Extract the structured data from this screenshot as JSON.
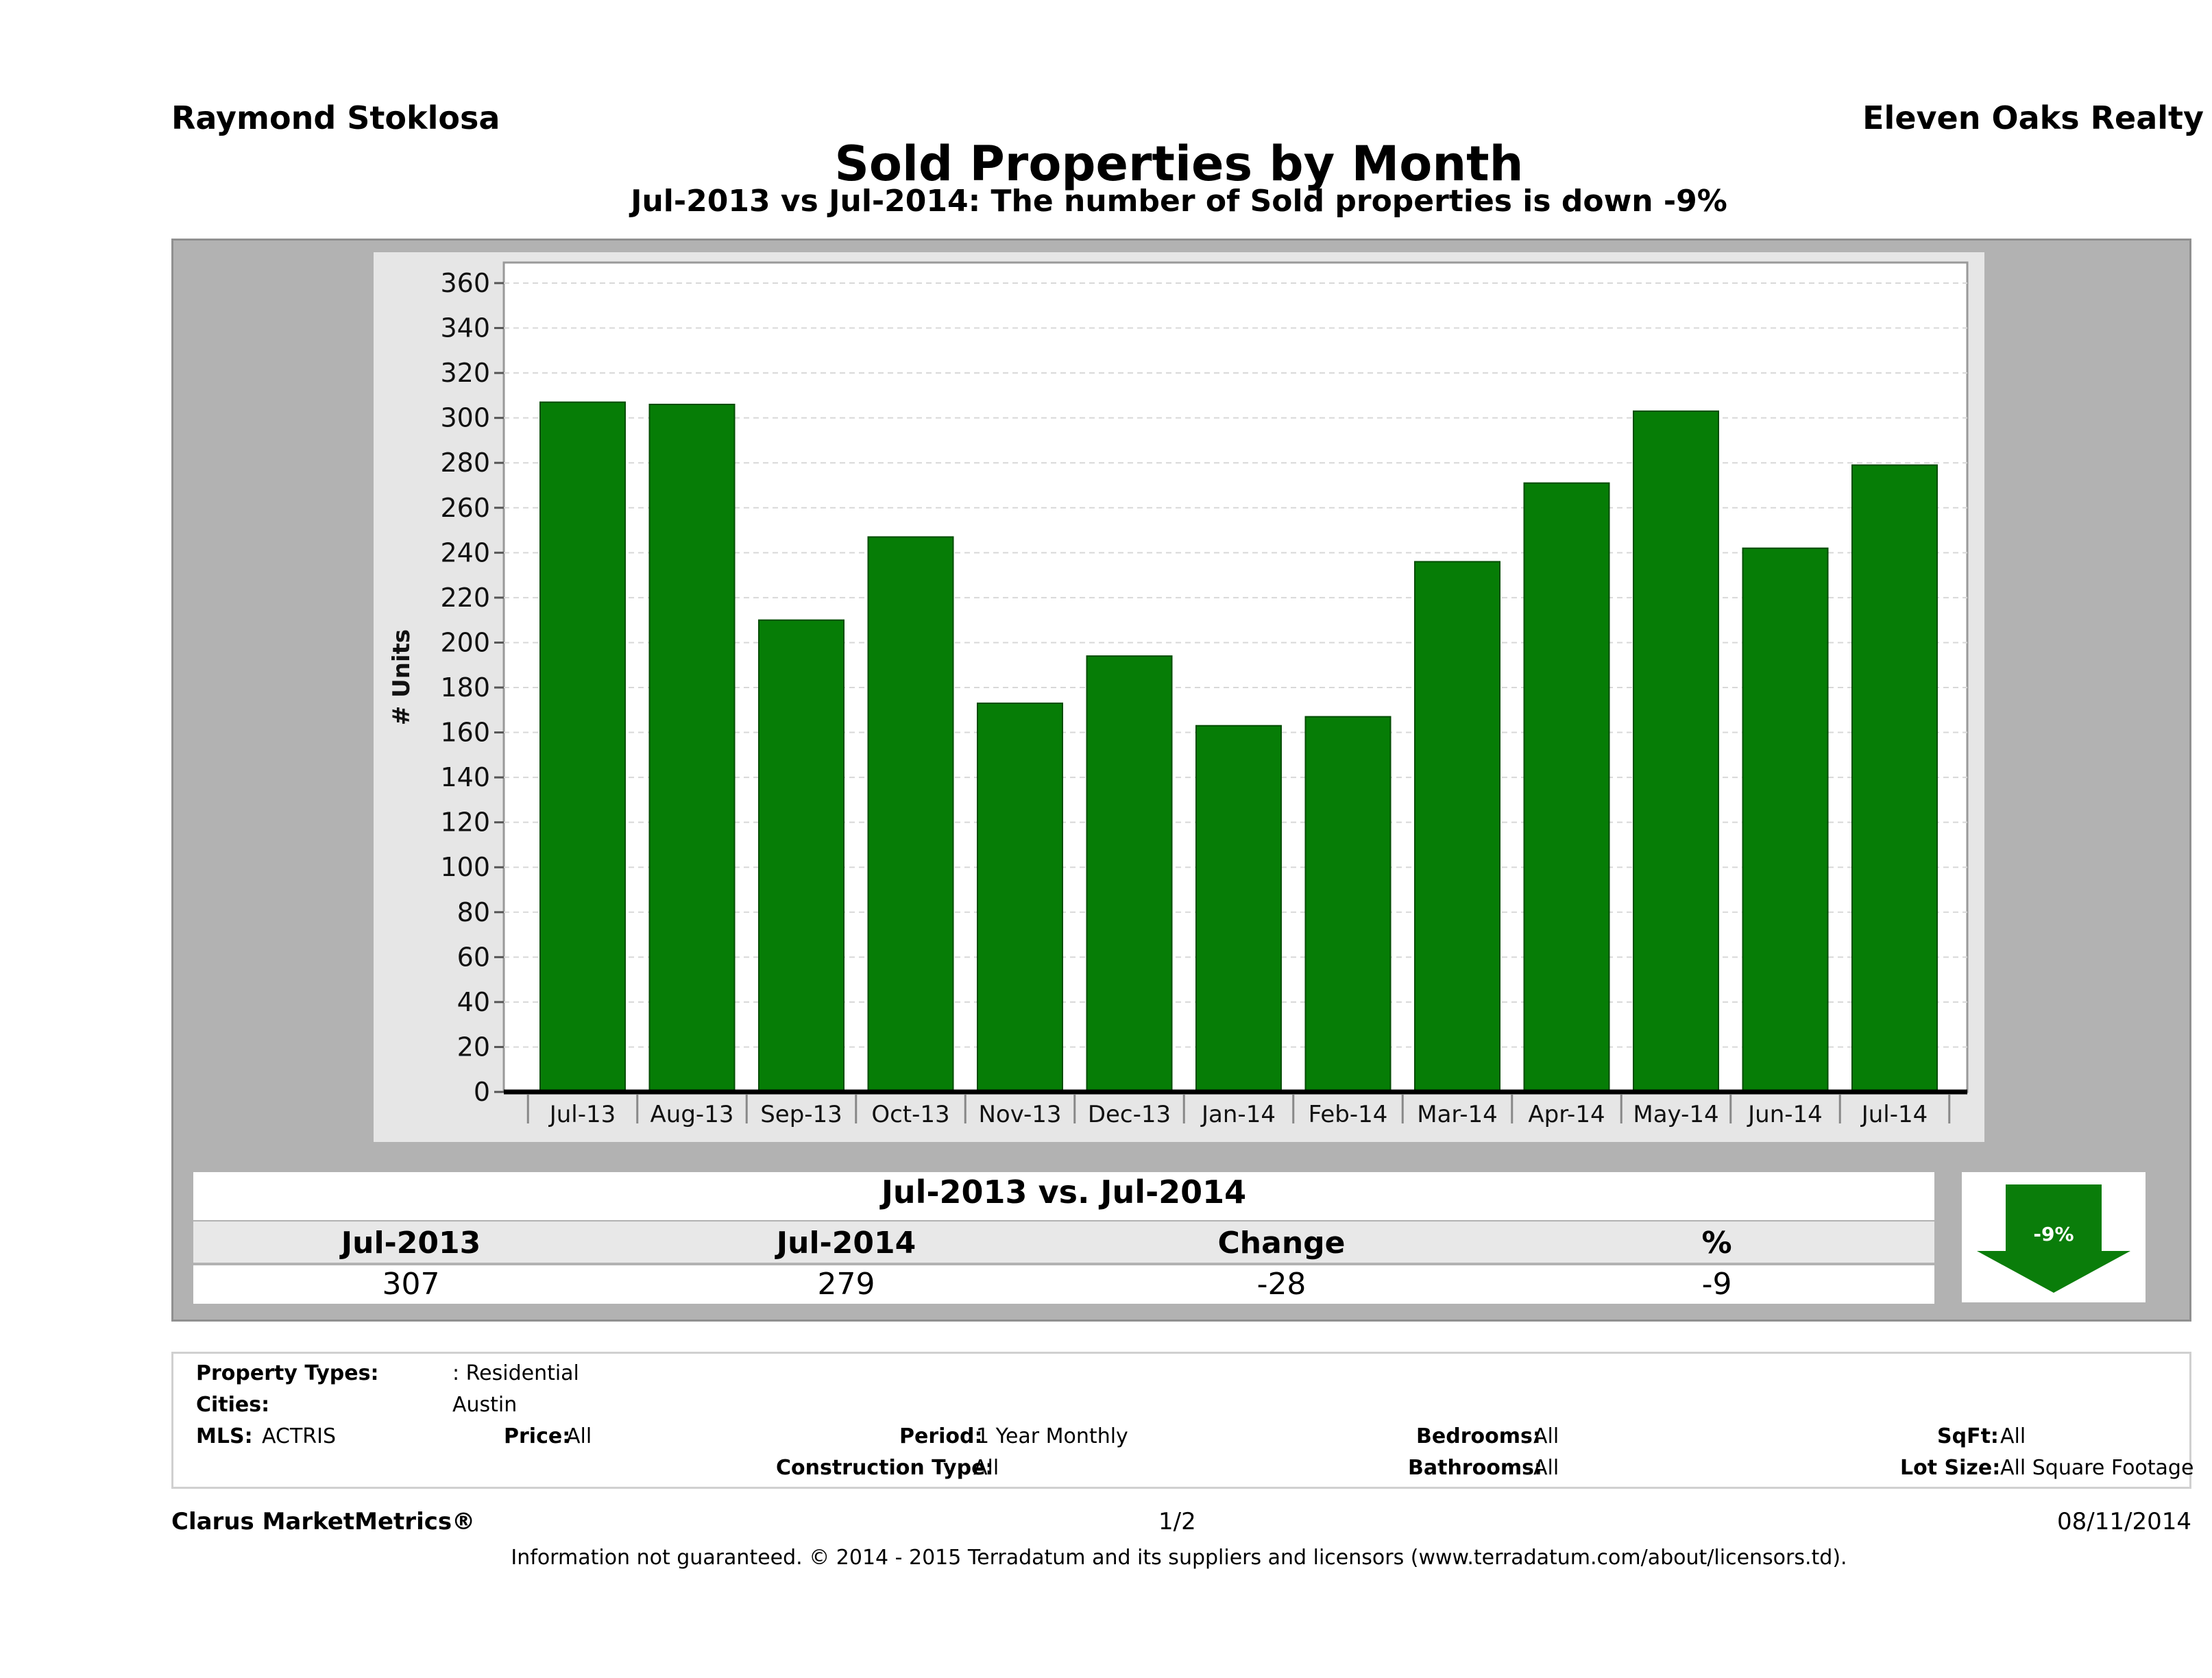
{
  "header": {
    "agent": "Raymond Stoklosa",
    "company": "Eleven Oaks Realty",
    "title": "Sold Properties by Month",
    "subtitle": "Jul-2013 vs Jul-2014: The number of Sold  properties is down -9%"
  },
  "chart_data": {
    "type": "bar",
    "categories": [
      "Jul-13",
      "Aug-13",
      "Sep-13",
      "Oct-13",
      "Nov-13",
      "Dec-13",
      "Jan-14",
      "Feb-14",
      "Mar-14",
      "Apr-14",
      "May-14",
      "Jun-14",
      "Jul-14"
    ],
    "values": [
      307,
      306,
      210,
      247,
      173,
      194,
      163,
      167,
      236,
      271,
      303,
      242,
      279
    ],
    "ylabel": "# Units",
    "ylim": [
      0,
      360
    ],
    "yticks": [
      0,
      20,
      40,
      60,
      80,
      100,
      120,
      140,
      160,
      180,
      200,
      220,
      240,
      260,
      280,
      300,
      320,
      340,
      360
    ],
    "grid": true,
    "bar_color": "#067d06"
  },
  "summary": {
    "title": "Jul-2013 vs. Jul-2014",
    "columns": [
      "Jul-2013",
      "Jul-2014",
      "Change",
      "%"
    ],
    "values": [
      "307",
      "279",
      "-28",
      "-9"
    ],
    "badge": "-9%",
    "badge_color": "#0a7d0a"
  },
  "filters": {
    "property_types_label": "Property Types:",
    "property_types_value": ": Residential",
    "cities_label": "Cities:",
    "cities_value": "Austin",
    "mls_label": "MLS:",
    "mls_value": "ACTRIS",
    "price_label": "Price:",
    "price_value": "All",
    "period_label": "Period:",
    "period_value": "1 Year Monthly",
    "construction_label": "Construction Type:",
    "construction_value": "All",
    "bedrooms_label": "Bedrooms:",
    "bedrooms_value": "All",
    "bathrooms_label": "Bathrooms:",
    "bathrooms_value": "All",
    "sqft_label": "SqFt:",
    "sqft_value": "All",
    "lot_label": "Lot Size:",
    "lot_value": "All Square Footage"
  },
  "footer": {
    "brand": "Clarus MarketMetrics®",
    "page": "1/2",
    "date": "08/11/2014",
    "disclaimer": "Information not guaranteed. © 2014 - 2015 Terradatum and its suppliers and licensors (www.terradatum.com/about/licensors.td)."
  }
}
